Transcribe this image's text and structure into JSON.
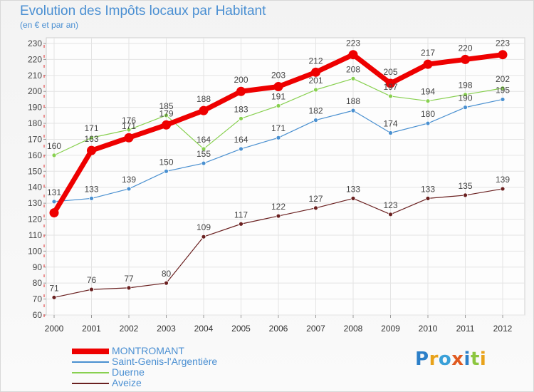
{
  "header": {
    "title": "Evolution des Impôts locaux par Habitant",
    "subtitle": "(en € et par an)"
  },
  "logo": {
    "text": "Proxiti"
  },
  "chart_data": {
    "type": "line",
    "title": "Evolution des Impôts locaux par Habitant",
    "subtitle": "(en € et par an)",
    "xlabel": "",
    "ylabel": "",
    "ylim": [
      60,
      230
    ],
    "ytick_step": 10,
    "grid": true,
    "legend_position": "bottom-left",
    "x": [
      "2000",
      "2001",
      "2002",
      "2003",
      "2004",
      "2005",
      "2006",
      "2007",
      "2008",
      "2009",
      "2010",
      "2011",
      "2012"
    ],
    "series": [
      {
        "name": "MONTROMANT",
        "color": "#ee0000",
        "emphasis": true,
        "values": [
          124,
          163,
          171,
          179,
          188,
          200,
          203,
          212,
          223,
          205,
          217,
          220,
          223
        ],
        "labels": [
          "",
          "",
          "",
          "",
          "188",
          "200",
          "203",
          "212",
          "223",
          "205",
          "217",
          "220",
          "223"
        ]
      },
      {
        "name": "Saint-Genis-l'Argentière",
        "color": "#4a90d0",
        "emphasis": false,
        "values": [
          131,
          133,
          139,
          150,
          155,
          164,
          171,
          182,
          188,
          174,
          180,
          190,
          195
        ],
        "labels": [
          "131",
          "133",
          "139",
          "150",
          "155",
          "164",
          "171",
          "182",
          "188",
          "174",
          "180",
          "190",
          "195"
        ]
      },
      {
        "name": "Duerne",
        "color": "#88d050",
        "emphasis": false,
        "values": [
          160,
          171,
          176,
          185,
          164,
          183,
          191,
          201,
          208,
          197,
          194,
          198,
          202
        ],
        "labels": [
          "160",
          "171",
          "176",
          "185",
          "164",
          "183",
          "191",
          "201",
          "208",
          "197",
          "194",
          "198",
          "202"
        ]
      },
      {
        "name": "Aveize",
        "color": "#6a2020",
        "emphasis": false,
        "values": [
          71,
          76,
          77,
          80,
          109,
          117,
          122,
          127,
          133,
          123,
          133,
          135,
          139
        ],
        "labels": [
          "71",
          "76",
          "77",
          "80",
          "109",
          "117",
          "122",
          "127",
          "133",
          "123",
          "133",
          "135",
          "139"
        ]
      }
    ],
    "overlap_labels": {
      "2001": "163",
      "2002": "171",
      "2003": "179"
    }
  }
}
